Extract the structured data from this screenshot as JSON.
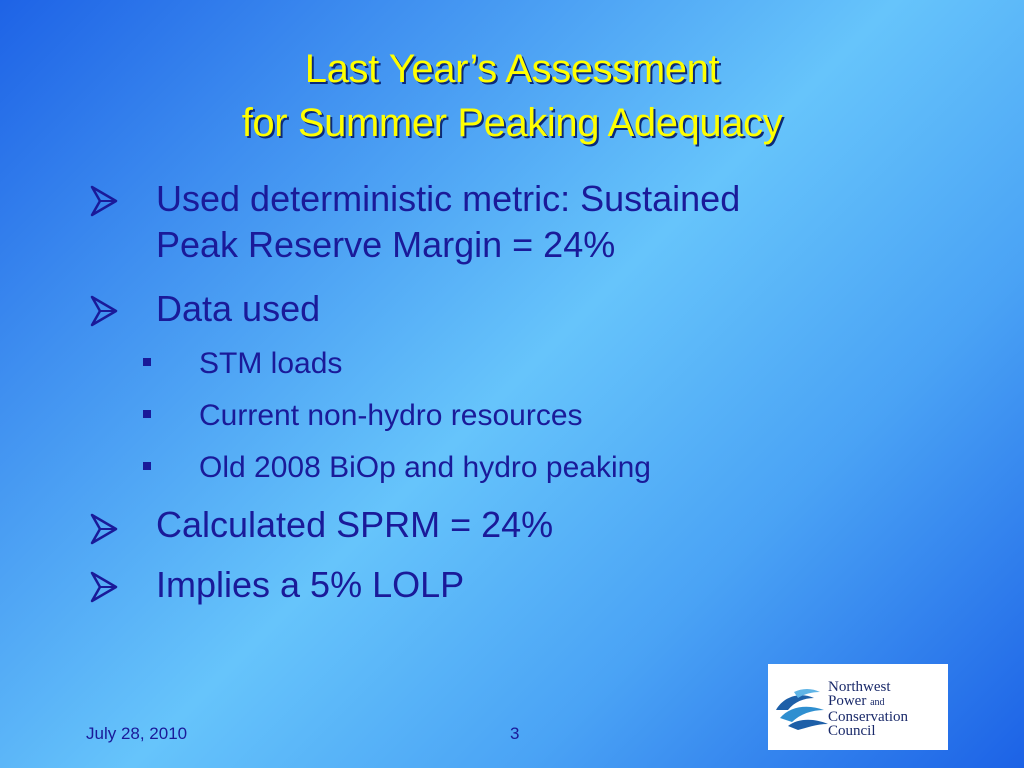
{
  "slide": {
    "title_line1": "Last Year’s Assessment",
    "title_line2": "for Summer Peaking Adequacy",
    "bullets": [
      {
        "level": 1,
        "lines": [
          "Used deterministic metric: Sustained",
          "Peak Reserve Margin = 24%"
        ]
      },
      {
        "level": 1,
        "lines": [
          "Data used"
        ]
      },
      {
        "level": 2,
        "lines": [
          "STM loads"
        ]
      },
      {
        "level": 2,
        "lines": [
          "Current non-hydro resources"
        ]
      },
      {
        "level": 2,
        "lines": [
          "Old 2008 BiOp and hydro peaking"
        ]
      },
      {
        "level": 1,
        "lines": [
          "Calculated SPRM = 24%"
        ]
      },
      {
        "level": 1,
        "lines": [
          "Implies a 5% LOLP"
        ]
      }
    ],
    "footer_date": "July 28, 2010",
    "page_number": "3"
  },
  "logo": {
    "line1": "Northwest",
    "line2_main": "Power",
    "line2_small": "and",
    "line3": "Conservation",
    "line4": "Council"
  },
  "colors": {
    "title": "#ffff00",
    "text": "#1a1a99",
    "background_center": "#66c4fb",
    "background_edge": "#1e63e6"
  },
  "icons": {
    "level1_bullet": "arrow-bullet-icon",
    "level2_bullet": "square-bullet-icon",
    "logo_graphic": "fish-wave-logo-icon"
  }
}
